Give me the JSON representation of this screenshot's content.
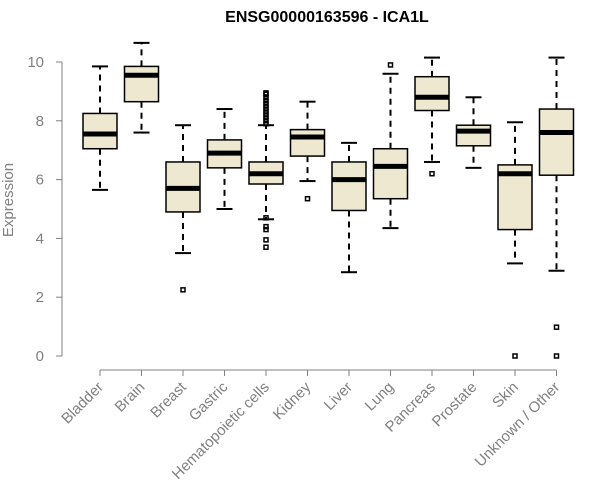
{
  "chart_data": {
    "type": "box",
    "title": "ENSG00000163596 - ICA1L",
    "xlabel": "",
    "ylabel": "Expression",
    "ylim": [
      0,
      10
    ],
    "yticks": [
      0,
      2,
      4,
      6,
      8,
      10
    ],
    "box_fill": "#eee8d0",
    "line_color": "#000000",
    "axis_color": "#808080",
    "categories": [
      "Bladder",
      "Brain",
      "Breast",
      "Gastric",
      "Hematopoietic cells",
      "Kidney",
      "Liver",
      "Lung",
      "Pancreas",
      "Prostate",
      "Skin",
      "Unknown / Other"
    ],
    "boxes": [
      {
        "min": 5.65,
        "q1": 7.05,
        "median": 7.55,
        "q3": 8.25,
        "max": 9.85,
        "outliers": []
      },
      {
        "min": 7.6,
        "q1": 8.65,
        "median": 9.55,
        "q3": 9.85,
        "max": 10.65,
        "outliers": []
      },
      {
        "min": 3.5,
        "q1": 4.9,
        "median": 5.7,
        "q3": 6.6,
        "max": 7.85,
        "outliers": [
          2.25
        ]
      },
      {
        "min": 5.0,
        "q1": 6.4,
        "median": 6.9,
        "q3": 7.35,
        "max": 8.4,
        "outliers": []
      },
      {
        "min": 4.65,
        "q1": 5.85,
        "median": 6.2,
        "q3": 6.6,
        "max": 7.85,
        "outliers": [
          3.7,
          3.95,
          4.3,
          4.4,
          4.7,
          7.9,
          8.0,
          8.1,
          8.2,
          8.3,
          8.4,
          8.5,
          8.6,
          8.7,
          8.8,
          8.9,
          8.95
        ]
      },
      {
        "min": 5.95,
        "q1": 6.8,
        "median": 7.45,
        "q3": 7.7,
        "max": 8.65,
        "outliers": [
          5.35
        ]
      },
      {
        "min": 2.85,
        "q1": 4.95,
        "median": 6.0,
        "q3": 6.6,
        "max": 7.25,
        "outliers": []
      },
      {
        "min": 4.35,
        "q1": 5.35,
        "median": 6.45,
        "q3": 7.05,
        "max": 9.6,
        "outliers": [
          9.9
        ]
      },
      {
        "min": 6.6,
        "q1": 8.35,
        "median": 8.8,
        "q3": 9.5,
        "max": 10.15,
        "outliers": [
          6.2
        ]
      },
      {
        "min": 6.4,
        "q1": 7.15,
        "median": 7.65,
        "q3": 7.85,
        "max": 8.8,
        "outliers": []
      },
      {
        "min": 3.15,
        "q1": 4.3,
        "median": 6.2,
        "q3": 6.5,
        "max": 7.95,
        "outliers": [
          0.0
        ]
      },
      {
        "min": 2.9,
        "q1": 6.15,
        "median": 7.6,
        "q3": 8.4,
        "max": 10.15,
        "outliers": [
          0.0,
          0.98
        ]
      }
    ]
  }
}
